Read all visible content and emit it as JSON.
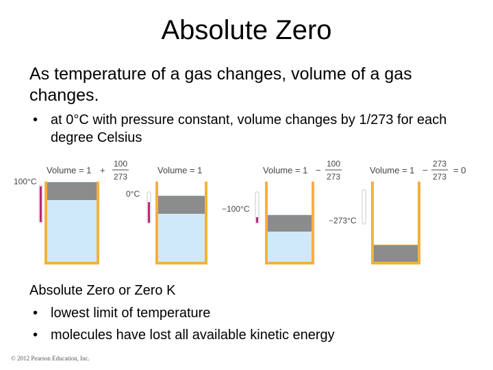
{
  "slide": {
    "title": "Absolute Zero",
    "paragraph1": "As temperature of a gas changes, volume of a gas changes.",
    "bullet1": "at 0°C with pressure constant, volume changes by 1/273 for each degree Celsius",
    "paragraph2": "Absolute Zero or Zero K",
    "bullet2": "lowest limit of temperature",
    "bullet3": "molecules have lost all available kinetic energy",
    "bullet_glyph": "•",
    "copyright": "© 2012 Pearson Education, Inc."
  },
  "figure": {
    "panels": [
      {
        "temperature": "100°C",
        "eq_prefix": "Volume = 1",
        "op": "+",
        "numerator": "100",
        "denominator": "273",
        "eq_suffix": "",
        "relative_volume": 1.366
      },
      {
        "temperature": "0°C",
        "eq_prefix": "Volume = 1",
        "op": "",
        "numerator": "",
        "denominator": "",
        "eq_suffix": "",
        "relative_volume": 1.0
      },
      {
        "temperature": "−100°C",
        "eq_prefix": "Volume = 1",
        "op": "−",
        "numerator": "100",
        "denominator": "273",
        "eq_suffix": "",
        "relative_volume": 0.634
      },
      {
        "temperature": "−273°C",
        "eq_prefix": "Volume = 1",
        "op": "−",
        "numerator": "273",
        "denominator": "273",
        "eq_suffix": "= 0",
        "relative_volume": 0.0
      }
    ],
    "colors": {
      "container": "#f4b23a",
      "gas": "#cfe9f8",
      "piston": "#8c8c8c",
      "thermometer": "#c2267a"
    }
  }
}
